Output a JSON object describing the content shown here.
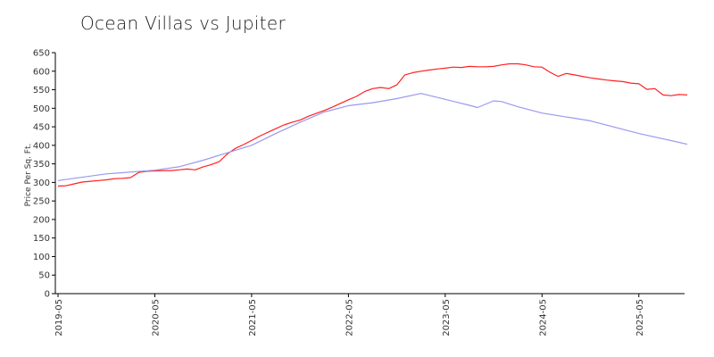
{
  "chart_data": {
    "type": "line",
    "title": "Ocean Villas vs Jupiter",
    "xlabel": "",
    "ylabel": "Price Per Sq. Ft.",
    "ylim": [
      0,
      650
    ],
    "yticks": [
      0,
      50,
      100,
      150,
      200,
      250,
      300,
      350,
      400,
      450,
      500,
      550,
      600,
      650
    ],
    "x_tick_labels": [
      "2019-05",
      "2020-05",
      "2021-05",
      "2022-05",
      "2023-05",
      "2024-05",
      "2025-05"
    ],
    "x_tick_months": [
      0,
      12,
      24,
      36,
      48,
      60,
      72
    ],
    "x_range": [
      0,
      78
    ],
    "grid": false,
    "legend": "none",
    "series": [
      {
        "color": "#ff2020",
        "points": [
          [
            0,
            290
          ],
          [
            1,
            291
          ],
          [
            2,
            296
          ],
          [
            3,
            301
          ],
          [
            4,
            303
          ],
          [
            5,
            305
          ],
          [
            6,
            307
          ],
          [
            7,
            310
          ],
          [
            8,
            311
          ],
          [
            9,
            313
          ],
          [
            10,
            327
          ],
          [
            11,
            330
          ],
          [
            12,
            331
          ],
          [
            13,
            332
          ],
          [
            14,
            332
          ],
          [
            15,
            334
          ],
          [
            16,
            336
          ],
          [
            17,
            334
          ],
          [
            18,
            342
          ],
          [
            19,
            348
          ],
          [
            20,
            356
          ],
          [
            21,
            377
          ],
          [
            22,
            392
          ],
          [
            23,
            402
          ],
          [
            24,
            413
          ],
          [
            25,
            425
          ],
          [
            26,
            435
          ],
          [
            27,
            445
          ],
          [
            28,
            455
          ],
          [
            29,
            462
          ],
          [
            30,
            468
          ],
          [
            31,
            478
          ],
          [
            32,
            486
          ],
          [
            33,
            494
          ],
          [
            34,
            503
          ],
          [
            35,
            513
          ],
          [
            36,
            523
          ],
          [
            37,
            532
          ],
          [
            38,
            545
          ],
          [
            39,
            553
          ],
          [
            40,
            556
          ],
          [
            41,
            553
          ],
          [
            42,
            563
          ],
          [
            43,
            590
          ],
          [
            44,
            596
          ],
          [
            45,
            600
          ],
          [
            46,
            603
          ],
          [
            47,
            606
          ],
          [
            48,
            608
          ],
          [
            49,
            611
          ],
          [
            50,
            610
          ],
          [
            51,
            613
          ],
          [
            52,
            612
          ],
          [
            53,
            612
          ],
          [
            54,
            613
          ],
          [
            55,
            617
          ],
          [
            56,
            620
          ],
          [
            57,
            620
          ],
          [
            58,
            617
          ],
          [
            59,
            612
          ],
          [
            60,
            611
          ],
          [
            61,
            597
          ],
          [
            62,
            586
          ],
          [
            63,
            594
          ],
          [
            64,
            590
          ],
          [
            65,
            586
          ],
          [
            66,
            582
          ],
          [
            67,
            579
          ],
          [
            68,
            576
          ],
          [
            69,
            574
          ],
          [
            70,
            572
          ],
          [
            71,
            568
          ],
          [
            72,
            566
          ],
          [
            73,
            551
          ],
          [
            74,
            553
          ],
          [
            75,
            536
          ],
          [
            76,
            534
          ],
          [
            77,
            537
          ],
          [
            78,
            536
          ]
        ]
      },
      {
        "color": "#9999ee",
        "points": [
          [
            0,
            305
          ],
          [
            6,
            323
          ],
          [
            12,
            333
          ],
          [
            15,
            342
          ],
          [
            18,
            360
          ],
          [
            21,
            380
          ],
          [
            24,
            400
          ],
          [
            27,
            432
          ],
          [
            30,
            462
          ],
          [
            33,
            490
          ],
          [
            36,
            507
          ],
          [
            39,
            515
          ],
          [
            42,
            526
          ],
          [
            45,
            540
          ],
          [
            48,
            524
          ],
          [
            51,
            508
          ],
          [
            52,
            502
          ],
          [
            54,
            520
          ],
          [
            55,
            518
          ],
          [
            57,
            504
          ],
          [
            60,
            487
          ],
          [
            66,
            466
          ],
          [
            72,
            432
          ],
          [
            78,
            403
          ]
        ]
      }
    ]
  }
}
